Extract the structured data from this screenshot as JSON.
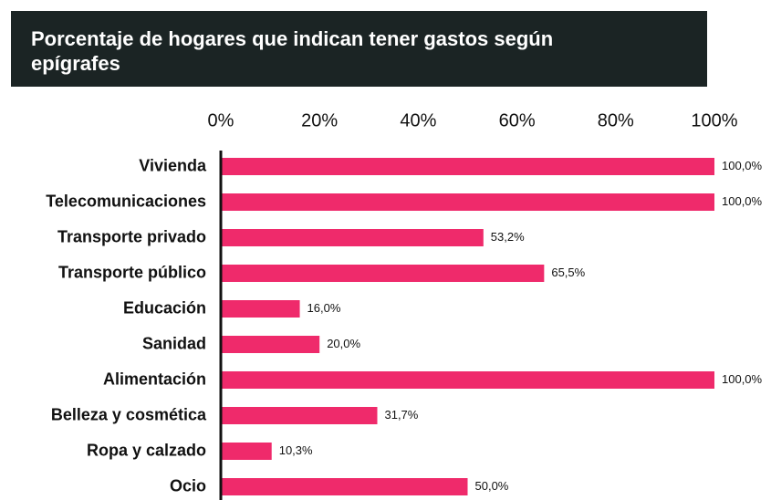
{
  "chart_data": {
    "type": "bar",
    "orientation": "horizontal",
    "title": "Porcentaje de hogares que indican tener gastos según epígrafes",
    "categories": [
      "Vivienda",
      "Telecomunicaciones",
      "Transporte privado",
      "Transporte público",
      "Educación",
      "Sanidad",
      "Alimentación",
      "Belleza y cosmética",
      "Ropa y calzado",
      "Ocio"
    ],
    "values": [
      100,
      100,
      53.2,
      65.5,
      16,
      20,
      100,
      31.7,
      10.3,
      50
    ],
    "value_labels": [
      "100,0%",
      "100,0%",
      "53,2%",
      "65,5%",
      "16,0%",
      "20,0%",
      "100,0%",
      "31,7%",
      "10,3%",
      "50,0%"
    ],
    "color": "#ef2a6b",
    "xlim": [
      0,
      100
    ],
    "xticks": [
      {
        "value": 0,
        "label": "0%"
      },
      {
        "value": 20,
        "label": "20%"
      },
      {
        "value": 40,
        "label": "40%"
      },
      {
        "value": 60,
        "label": "60%"
      },
      {
        "value": 80,
        "label": "80%"
      },
      {
        "value": 100,
        "label": "100%"
      }
    ],
    "grid": false
  }
}
